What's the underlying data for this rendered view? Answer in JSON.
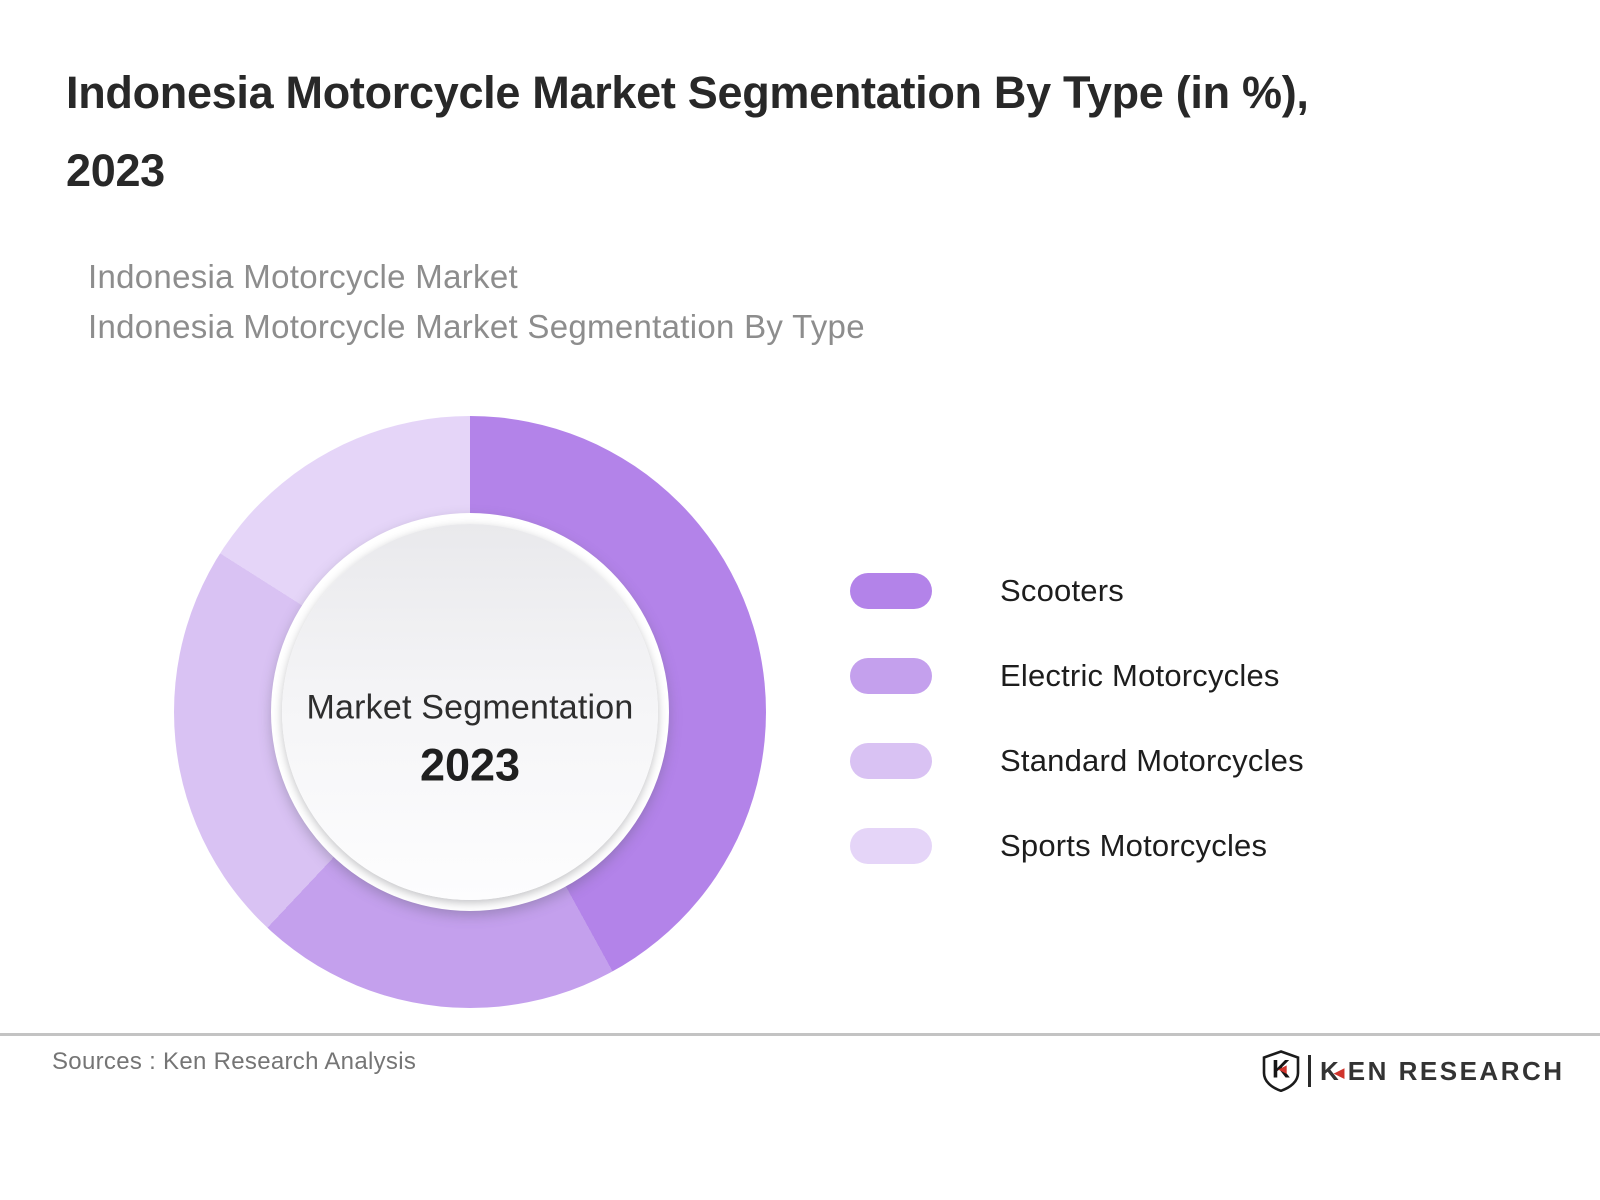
{
  "header": {
    "title_line1": "Indonesia Motorcycle Market Segmentation By Type (in %),",
    "title_line2": "2023",
    "subtitle_line1": "Indonesia Motorcycle Market",
    "subtitle_line2": "Indonesia Motorcycle Market Segmentation By Type"
  },
  "chart_data": {
    "type": "pie",
    "variant": "donut",
    "title": "Indonesia Motorcycle Market Segmentation By Type (in %), 2023",
    "center_label": "Market Segmentation",
    "center_year": "2023",
    "categories": [
      "Scooters",
      "Electric Motorcycles",
      "Standard Motorcycles",
      "Sports Motorcycles"
    ],
    "values": [
      42,
      20,
      22,
      16
    ],
    "unit": "%",
    "colors": [
      "#b383e9",
      "#c4a0ed",
      "#d9c2f3",
      "#e5d5f8"
    ],
    "start_angle_deg": 0,
    "direction": "clockwise",
    "legend_position": "right",
    "data_labels_shown": false,
    "hole_fill": "#f2f2f4"
  },
  "footer": {
    "sources_text": "Sources : Ken Research Analysis",
    "logo": {
      "text": "KEN RESEARCH",
      "accent_color": "#d0342c"
    }
  }
}
